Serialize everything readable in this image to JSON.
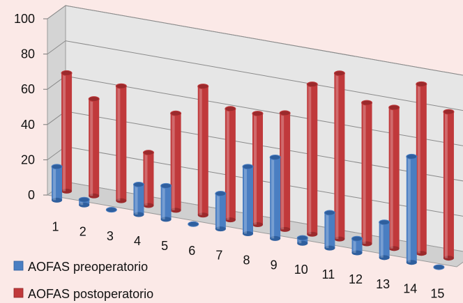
{
  "chart_data": {
    "type": "bar",
    "title": "",
    "xlabel": "",
    "ylabel": "",
    "ylim": [
      0,
      100
    ],
    "y_ticks": [
      "0",
      "20",
      "40",
      "60",
      "80",
      "100"
    ],
    "categories": [
      "1",
      "2",
      "3",
      "4",
      "5",
      "6",
      "7",
      "8",
      "9",
      "10",
      "11",
      "12",
      "13",
      "14",
      "15"
    ],
    "series": [
      {
        "name": "AOFAS preoperatorio",
        "color": "#4a7ec2",
        "values": [
          19,
          3,
          0,
          17,
          19,
          0,
          20,
          38,
          46,
          3,
          20,
          8,
          20,
          60,
          0
        ]
      },
      {
        "name": "AOFAS postoperatorio",
        "color": "#c0393b",
        "values": [
          67,
          55,
          65,
          30,
          55,
          73,
          63,
          63,
          66,
          85,
          94,
          80,
          80,
          96,
          83
        ]
      }
    ],
    "grid": true,
    "style": "3d-clustered-columns",
    "legend_position": "bottom-left"
  }
}
